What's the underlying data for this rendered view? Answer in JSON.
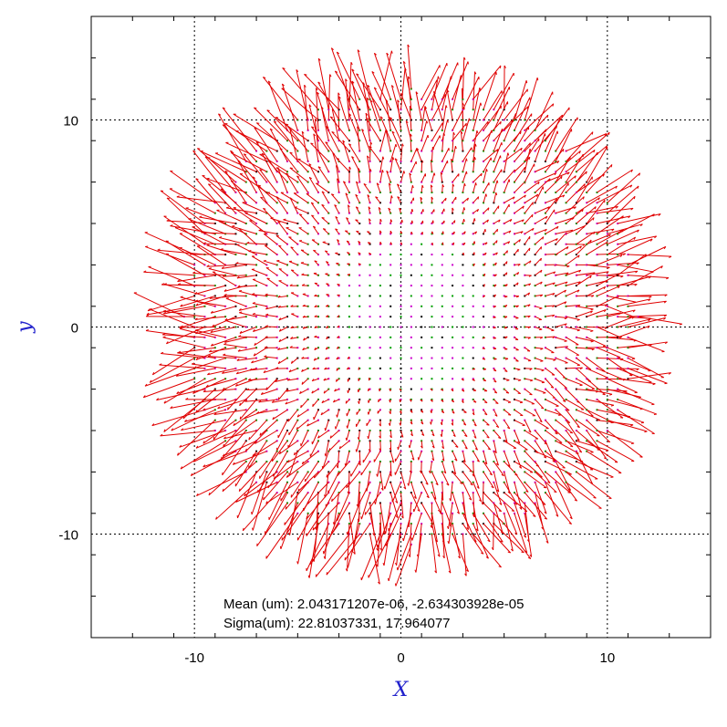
{
  "chart_data": {
    "type": "vector-field",
    "title": "",
    "xlabel": "X",
    "ylabel": "y",
    "xlim": [
      -15,
      15
    ],
    "ylim": [
      -15,
      15
    ],
    "x_ticks": [
      -10,
      0,
      10
    ],
    "y_ticks": [
      -10,
      0,
      10
    ],
    "x_tick_labels": [
      "-10",
      "0",
      "10"
    ],
    "y_tick_labels": [
      "-10",
      "0",
      "10"
    ],
    "minor_tick_step": 2,
    "grid": "dotted at major ticks",
    "field": {
      "center": [
        0.5,
        0.5
      ],
      "radius": 11,
      "spacing": 0.5,
      "description_min_label": "",
      "vector_scale": 0.16
    },
    "annotations": [
      "Mean (um): 2.043171207e-06, -2.634303928e-05",
      "Sigma(um): 22.81037331, 17.964077"
    ],
    "colors": {
      "vector": "#e00000",
      "marker_magenta": "#cc00cc",
      "marker_green": "#00a000",
      "marker_black": "#000000",
      "axis_title": "#2222cc",
      "grid": "#000000"
    }
  }
}
